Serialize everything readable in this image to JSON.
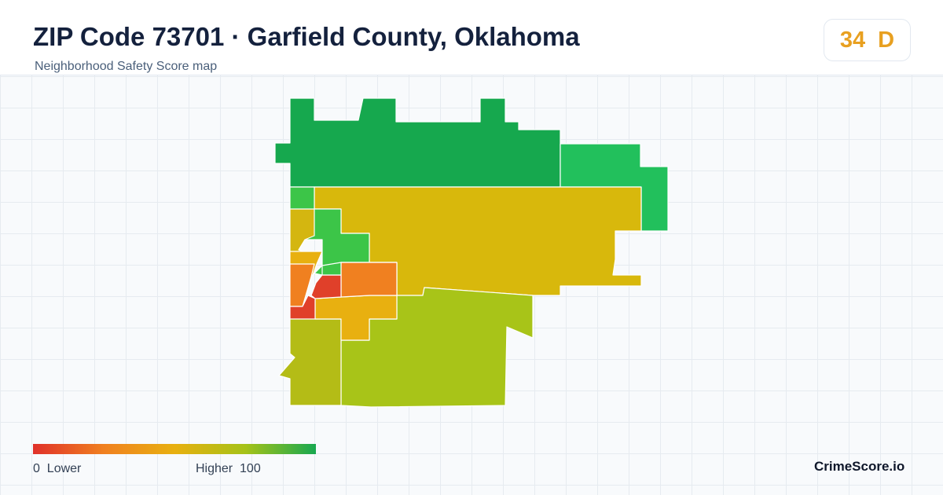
{
  "header": {
    "title": "ZIP Code 73701 · Garfield County, Oklahoma",
    "subtitle": "Neighborhood Safety Score map"
  },
  "score": {
    "value": "34",
    "grade": "D",
    "color": "#e8a020"
  },
  "legend": {
    "min_value": "0",
    "min_label": "Lower",
    "max_label": "Higher",
    "max_value": "100",
    "colors": [
      "#e0312a",
      "#f08020",
      "#e8b010",
      "#a6c218",
      "#18a850"
    ]
  },
  "map": {
    "colors": {
      "north": "#16a84e",
      "northeast": "#22c05c",
      "center-east": "#d8b80c",
      "south": "#a8c418",
      "southwest": "#b4bc16",
      "west-green": "#3cc548",
      "west-yellow": "#d4b610",
      "core-orange": "#f08020",
      "core-amber": "#e8b010",
      "core-red": "#e0402a"
    }
  },
  "brand": {
    "name": "CrimeScore.io"
  }
}
